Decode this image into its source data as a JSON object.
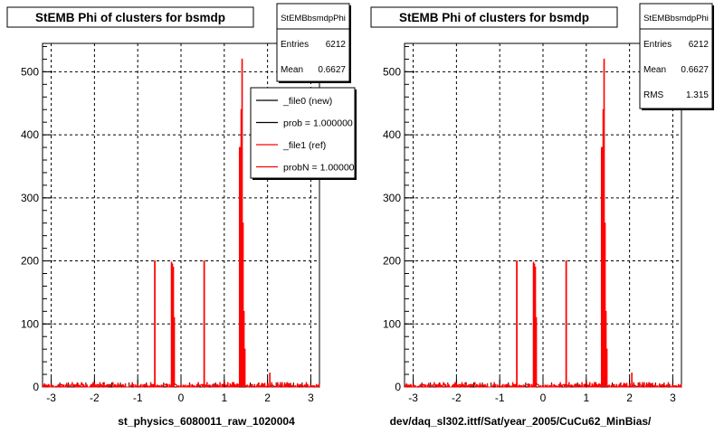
{
  "chart_data": [
    {
      "type": "line",
      "title": "StEMB Phi of clusters for bsmdp",
      "xlabel": "st_physics_6080011_raw_1020004",
      "ylabel": "",
      "xlim": [
        -3.2,
        3.2
      ],
      "ylim": [
        0,
        545
      ],
      "xticks": [
        -3,
        -2,
        -1,
        0,
        1,
        2,
        3
      ],
      "yticks": [
        0,
        100,
        200,
        300,
        400,
        500
      ],
      "grid": true,
      "stats": {
        "name": "StEMBbsmdpPhi",
        "rows": [
          {
            "label": "Entries",
            "value": "6212"
          },
          {
            "label": "Mean",
            "value": "0.6627"
          }
        ]
      },
      "legend": {
        "position": "top-right",
        "entries": [
          {
            "label": "_file0 (new)",
            "color": "#000000"
          },
          {
            "label": "prob = 1.000000",
            "color": "#000000"
          },
          {
            "label": "_file1 (ref)",
            "color": "#ff0000"
          },
          {
            "label": "probN = 1.000000",
            "color": "#ff0000"
          }
        ]
      },
      "series": [
        {
          "color": "#ff0000",
          "noise_range": [
            -3.2,
            3.2
          ],
          "noise_level": 5,
          "spikes": [
            {
              "x": -0.61,
              "y": 200
            },
            {
              "x": -0.22,
              "y": 198
            },
            {
              "x": -0.2,
              "y": 195
            },
            {
              "x": -0.18,
              "y": 190
            },
            {
              "x": -0.16,
              "y": 110
            },
            {
              "x": 0.53,
              "y": 200
            },
            {
              "x": 1.35,
              "y": 380
            },
            {
              "x": 1.37,
              "y": 90
            },
            {
              "x": 1.39,
              "y": 440
            },
            {
              "x": 1.41,
              "y": 520
            },
            {
              "x": 1.43,
              "y": 260
            },
            {
              "x": 1.45,
              "y": 120
            },
            {
              "x": 1.47,
              "y": 60
            },
            {
              "x": 2.05,
              "y": 22
            }
          ]
        }
      ]
    },
    {
      "type": "line",
      "title": "StEMB Phi of clusters for bsmdp",
      "xlabel": "dev/daq_sl302.ittf/Sat/year_2005/CuCu62_MinBias/",
      "ylabel": "",
      "xlim": [
        -3.2,
        3.2
      ],
      "ylim": [
        0,
        545
      ],
      "xticks": [
        -3,
        -2,
        -1,
        0,
        1,
        2,
        3
      ],
      "yticks": [
        0,
        100,
        200,
        300,
        400,
        500
      ],
      "grid": true,
      "stats": {
        "name": "StEMBbsmdpPhi",
        "rows": [
          {
            "label": "Entries",
            "value": "6212"
          },
          {
            "label": "Mean",
            "value": "0.6627"
          },
          {
            "label": "RMS",
            "value": "1.315"
          }
        ]
      },
      "series": [
        {
          "color": "#ff0000",
          "noise_range": [
            -3.2,
            3.2
          ],
          "noise_level": 5,
          "spikes": [
            {
              "x": -0.61,
              "y": 200
            },
            {
              "x": -0.22,
              "y": 198
            },
            {
              "x": -0.2,
              "y": 195
            },
            {
              "x": -0.18,
              "y": 190
            },
            {
              "x": -0.16,
              "y": 110
            },
            {
              "x": 0.53,
              "y": 200
            },
            {
              "x": 1.35,
              "y": 380
            },
            {
              "x": 1.37,
              "y": 90
            },
            {
              "x": 1.39,
              "y": 440
            },
            {
              "x": 1.41,
              "y": 520
            },
            {
              "x": 1.43,
              "y": 260
            },
            {
              "x": 1.45,
              "y": 120
            },
            {
              "x": 1.47,
              "y": 60
            },
            {
              "x": 2.05,
              "y": 22
            }
          ]
        }
      ]
    }
  ]
}
